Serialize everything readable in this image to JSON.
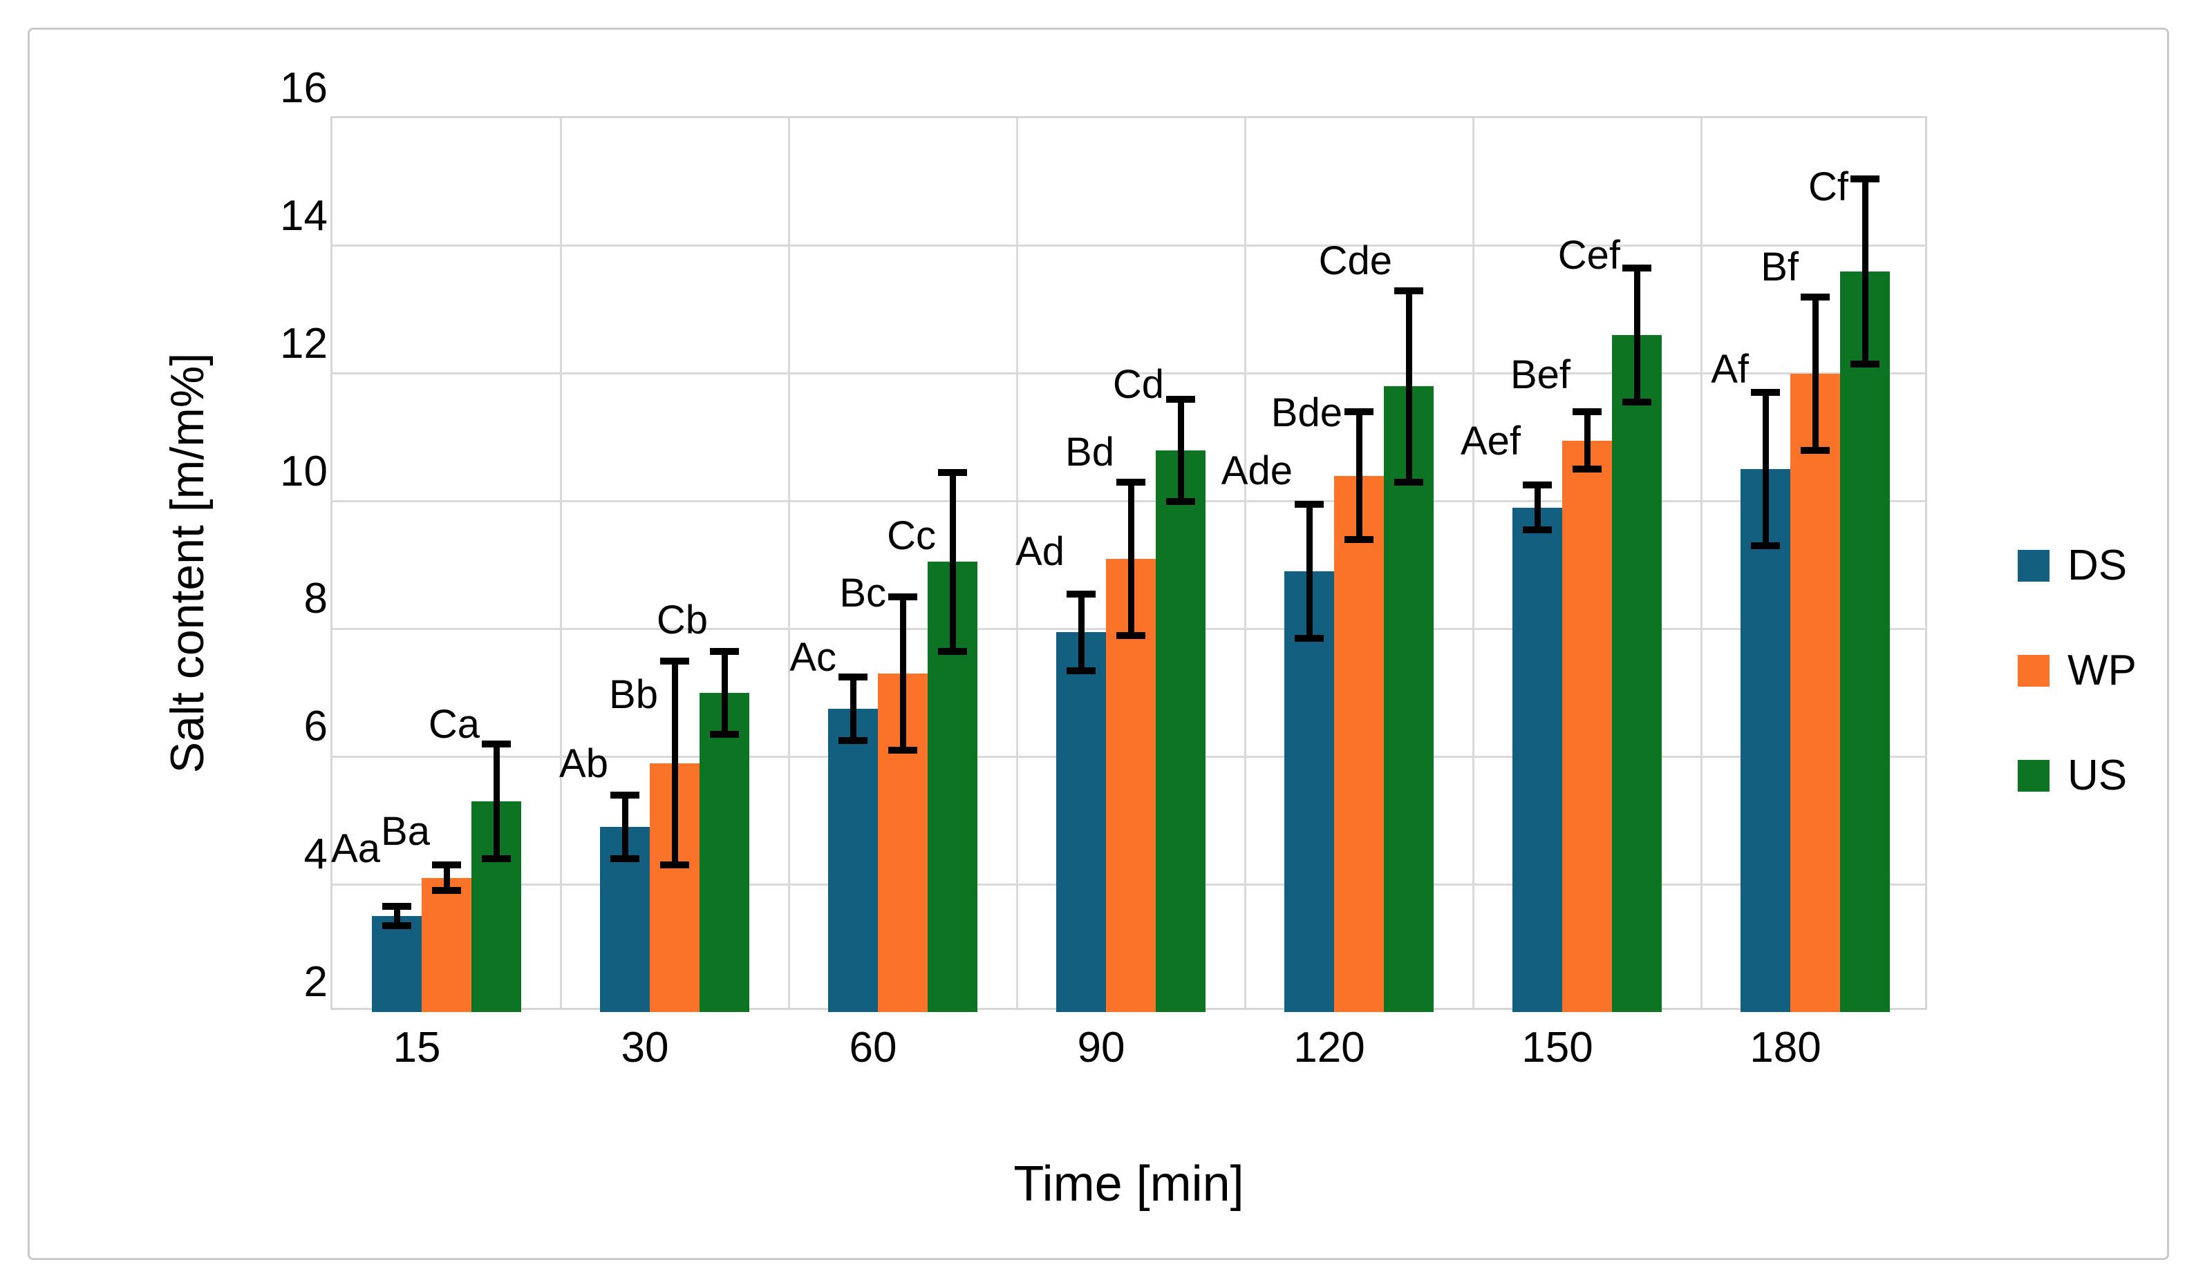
{
  "chart_data": {
    "type": "bar",
    "title": "",
    "xlabel": "Time [min]",
    "ylabel": "Salt content [m/m%]",
    "categories": [
      "15",
      "30",
      "60",
      "90",
      "120",
      "150",
      "180"
    ],
    "y_ticks": [
      "2",
      "4",
      "6",
      "8",
      "10",
      "12",
      "14",
      "16"
    ],
    "ylim": [
      2,
      16
    ],
    "ytick_step": 2,
    "grid": "horizontal major gridlines every 2 units and vertical category-boundary gridlines, light gray",
    "legend_position": "right",
    "error_bars": "plus-minus, black, capped",
    "series": [
      {
        "name": "DS",
        "color": "#135f80",
        "values": [
          3.5,
          4.9,
          6.75,
          7.95,
          8.9,
          9.9,
          10.5
        ],
        "errors": [
          0.15,
          0.5,
          0.5,
          0.6,
          1.05,
          0.35,
          1.2
        ],
        "point_labels": [
          "Aa",
          "Ab",
          "Ac",
          "Ad",
          "Ade",
          "Aef",
          "Af"
        ]
      },
      {
        "name": "WP",
        "color": "#fa7329",
        "values": [
          4.1,
          5.9,
          7.3,
          9.1,
          10.4,
          10.95,
          12.0
        ],
        "errors": [
          0.2,
          1.6,
          1.2,
          1.2,
          1.0,
          0.45,
          1.2
        ],
        "point_labels": [
          "Ba",
          "Bb",
          "Bc",
          "Bd",
          "Bde",
          "Bef",
          "Bf"
        ]
      },
      {
        "name": "US",
        "color": "#0d7423",
        "values": [
          5.3,
          7.0,
          9.05,
          10.8,
          11.8,
          12.6,
          13.6
        ],
        "errors": [
          0.9,
          0.65,
          1.4,
          0.8,
          1.5,
          1.05,
          1.45
        ],
        "point_labels": [
          "Ca",
          "Cb",
          "Cc",
          "Cd",
          "Cde",
          "Cef",
          "Cf"
        ]
      }
    ],
    "colors": {
      "gridline": "#d9d9d9",
      "plot_border": "#d6d6d6",
      "figure_border": "#c9c9c9",
      "error_bar": "#000000",
      "text": "#000000",
      "background": "#ffffff"
    }
  }
}
